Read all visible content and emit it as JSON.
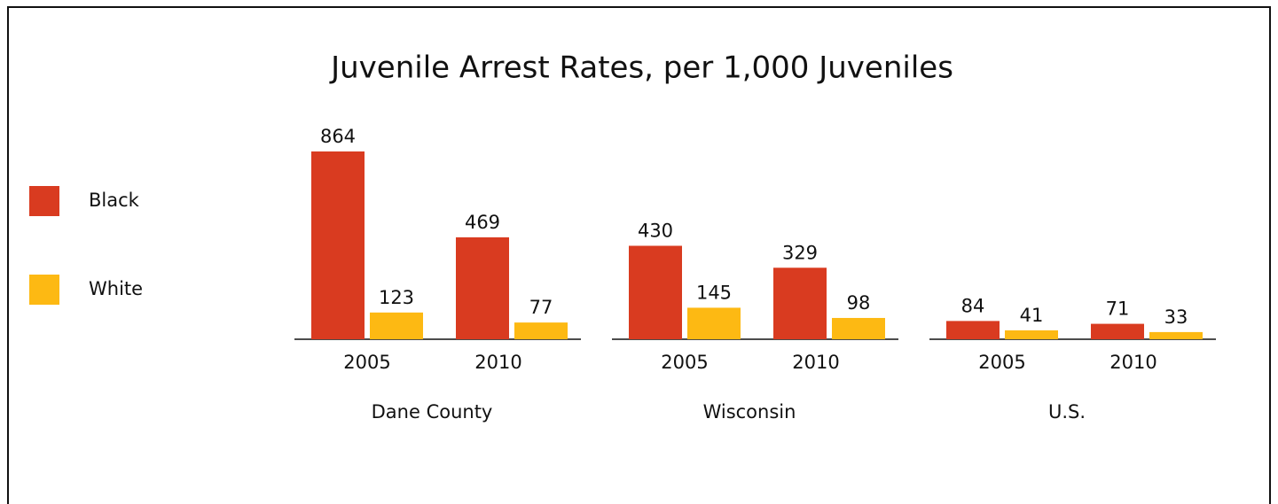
{
  "chart_data": {
    "type": "bar",
    "title": "Juvenile Arrest Rates, per 1,000 Juveniles",
    "groups": [
      "Dane County",
      "Wisconsin",
      "U.S."
    ],
    "categories": [
      "2005",
      "2010",
      "2005",
      "2010",
      "2005",
      "2010"
    ],
    "series": [
      {
        "name": "Black",
        "color": "#d93b20",
        "values": [
          864,
          469,
          430,
          329,
          84,
          71
        ]
      },
      {
        "name": "White",
        "color": "#fdb913",
        "values": [
          123,
          77,
          145,
          98,
          41,
          33
        ]
      }
    ]
  }
}
